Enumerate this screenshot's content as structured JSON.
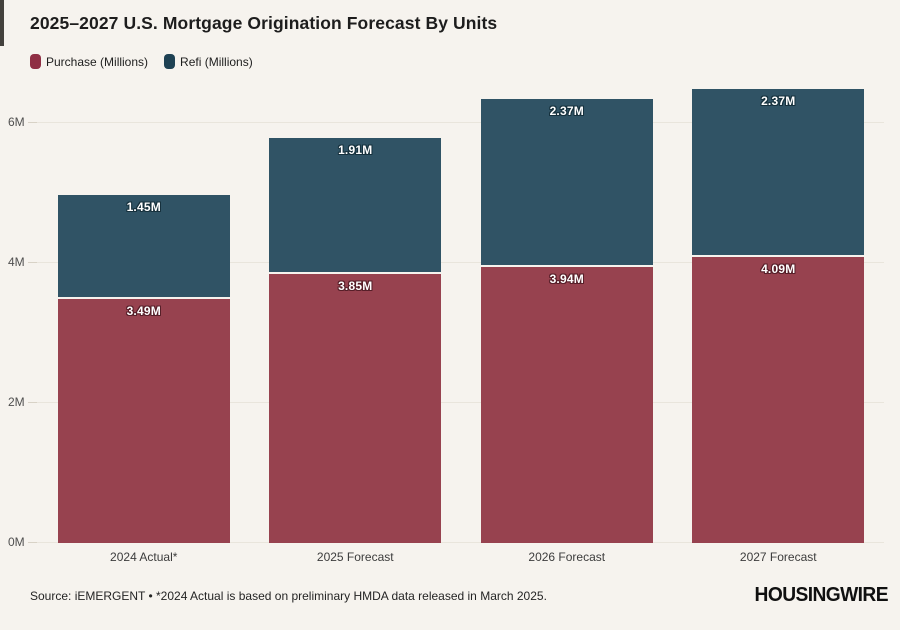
{
  "title": "2025–2027 U.S. Mortgage Origination Forecast By Units",
  "colors": {
    "background": "#f6f3ee",
    "purchase": "#97424f",
    "refi": "#305365",
    "purchase_legend": "#8f2f44",
    "refi_legend": "#1e4153",
    "gridline": "#e9e5dc",
    "purchase_label_outline": "#571f29",
    "refi_label_outline": "#16313d"
  },
  "legend": {
    "purchase_label": "Purchase (Millions)",
    "refi_label": "Refi (Millions)"
  },
  "chart_data": {
    "type": "bar",
    "stacked": true,
    "title": "2025–2027 U.S. Mortgage Origination Forecast By Units",
    "xlabel": "",
    "ylabel": "",
    "categories": [
      "2024 Actual*",
      "2025 Forecast",
      "2026 Forecast",
      "2027 Forecast"
    ],
    "series": [
      {
        "name": "Purchase (Millions)",
        "values": [
          3.49,
          3.85,
          3.94,
          4.09
        ],
        "labels": [
          "3.49M",
          "3.85M",
          "3.94M",
          "4.09M"
        ]
      },
      {
        "name": "Refi (Millions)",
        "values": [
          1.45,
          1.91,
          2.37,
          2.37
        ],
        "labels": [
          "1.45M",
          "1.91M",
          "2.37M",
          "2.37M"
        ]
      }
    ],
    "totals": [
      4.94,
      5.76,
      6.31,
      6.46
    ],
    "yticks": [
      {
        "label": "0M",
        "value": 0
      },
      {
        "label": "2M",
        "value": 2
      },
      {
        "label": "4M",
        "value": 4
      },
      {
        "label": "6M",
        "value": 6
      }
    ],
    "ylim": [
      0,
      6.5
    ],
    "grid": true,
    "legend_position": "top-left"
  },
  "footer": {
    "source": "Source: iEMERGENT • *2024 Actual is based on preliminary HMDA data released in March 2025.",
    "logo": "HOUSINGWIRE"
  }
}
